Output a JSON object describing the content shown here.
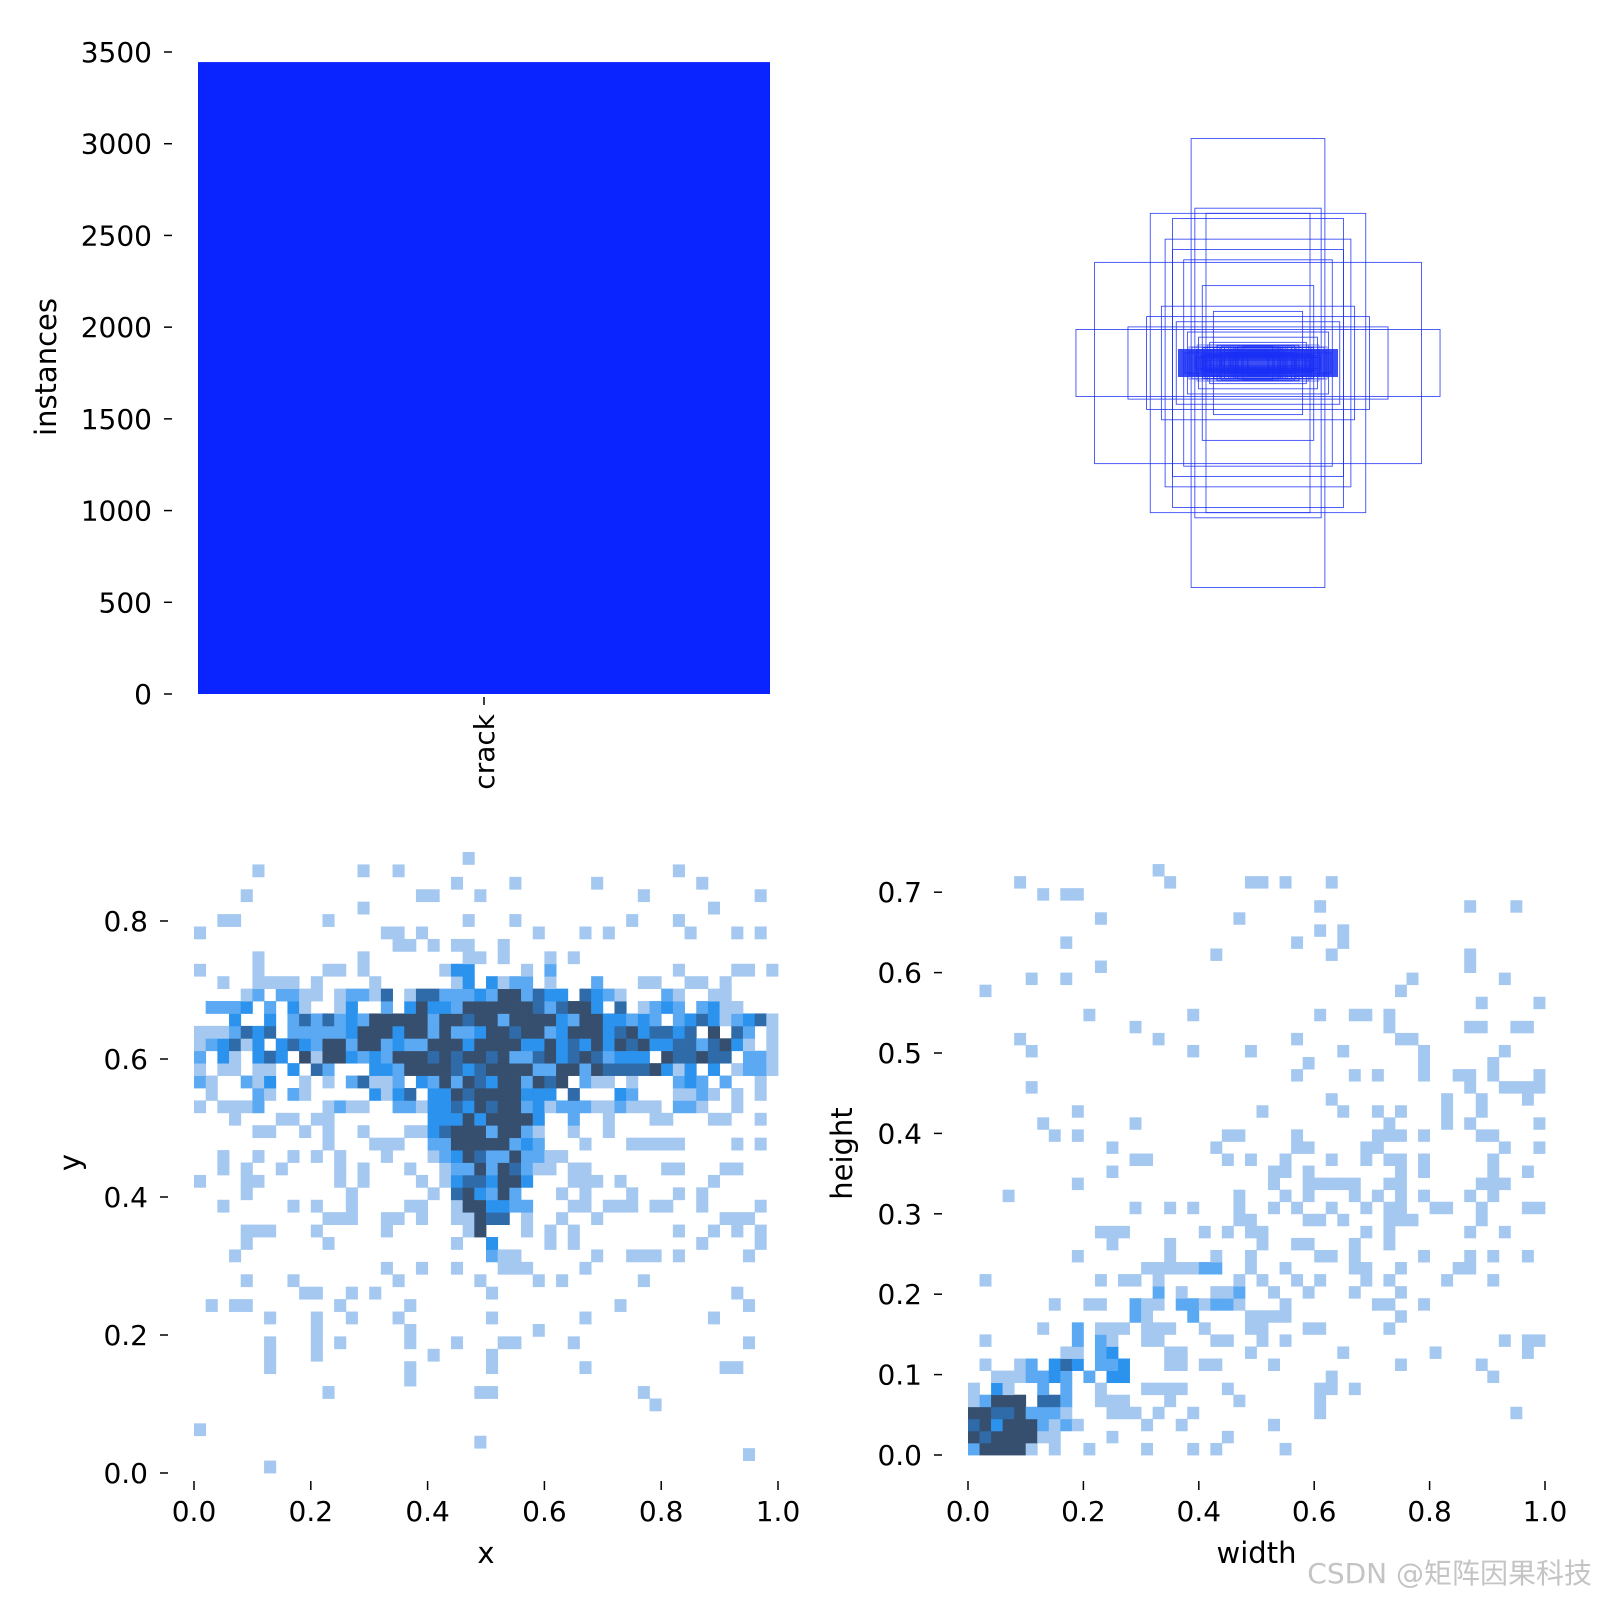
{
  "chart_data": [
    {
      "panel": "top-left",
      "type": "bar",
      "categories": [
        "crack"
      ],
      "values": [
        3445
      ],
      "xlabel": "",
      "ylabel": "instances",
      "ylim": [
        0,
        3500
      ],
      "yticks": [
        "0",
        "500",
        "1000",
        "1500",
        "2000",
        "2500",
        "3000",
        "3500"
      ],
      "color": "#0a24ff"
    },
    {
      "panel": "top-right",
      "type": "scatter",
      "description_kind": "bounding-box-overlay",
      "color": "#1a2ff5",
      "boxes_wh": [
        [
          0.36,
          0.87
        ],
        [
          0.34,
          0.6
        ],
        [
          0.46,
          0.56
        ],
        [
          0.28,
          0.58
        ],
        [
          0.88,
          0.39
        ],
        [
          0.58,
          0.58
        ],
        [
          0.5,
          0.48
        ],
        [
          0.46,
          0.44
        ],
        [
          0.4,
          0.4
        ],
        [
          0.98,
          0.13
        ],
        [
          0.6,
          0.18
        ],
        [
          0.7,
          0.14
        ],
        [
          0.52,
          0.22
        ],
        [
          0.44,
          0.16
        ],
        [
          0.38,
          0.12
        ],
        [
          0.32,
          0.1
        ],
        [
          0.26,
          0.08
        ],
        [
          0.22,
          0.07
        ],
        [
          0.18,
          0.06
        ],
        [
          0.14,
          0.05
        ],
        [
          0.3,
          0.3
        ],
        [
          0.24,
          0.2
        ],
        [
          0.12,
          0.04
        ],
        [
          0.08,
          0.03
        ]
      ]
    },
    {
      "panel": "bottom-left",
      "type": "heatmap",
      "xlabel": "x",
      "ylabel": "y",
      "xlim": [
        0.0,
        1.0
      ],
      "ylim": [
        0.0,
        0.9
      ],
      "xticks": [
        "0.0",
        "0.2",
        "0.4",
        "0.6",
        "0.8",
        "1.0"
      ],
      "yticks": [
        "0.0",
        "0.2",
        "0.4",
        "0.6",
        "0.8"
      ],
      "bins": [
        50,
        50
      ],
      "peak_x": 0.5,
      "peak_y": 0.6,
      "colors": [
        "#a5c8f0",
        "#5aa9f2",
        "#2b93ee",
        "#2f6ba8",
        "#374f6e"
      ]
    },
    {
      "panel": "bottom-right",
      "type": "heatmap",
      "xlabel": "width",
      "ylabel": "height",
      "xlim": [
        0.0,
        1.0
      ],
      "ylim": [
        0.0,
        0.75
      ],
      "xticks": [
        "0.0",
        "0.2",
        "0.4",
        "0.6",
        "0.8",
        "1.0"
      ],
      "yticks": [
        "0.0",
        "0.1",
        "0.2",
        "0.3",
        "0.4",
        "0.5",
        "0.6",
        "0.7"
      ],
      "bins": [
        50,
        50
      ],
      "peak_x": 0.05,
      "peak_y": 0.02,
      "colors": [
        "#a5c8f0",
        "#5aa9f2",
        "#2b93ee",
        "#2f6ba8",
        "#374f6e"
      ]
    }
  ],
  "watermark": "CSDN @矩阵因果科技"
}
